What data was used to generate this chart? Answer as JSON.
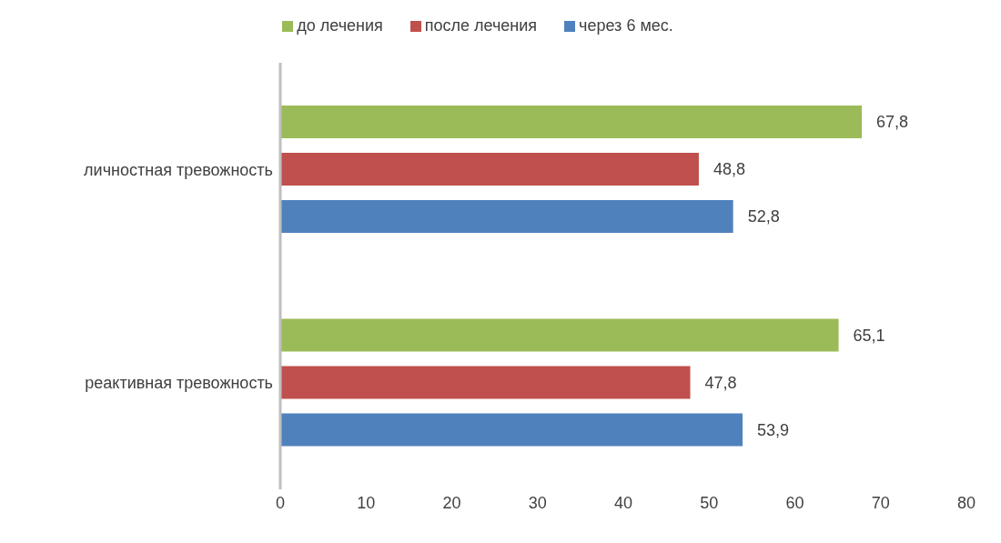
{
  "chart_data": {
    "type": "bar",
    "orientation": "horizontal",
    "categories": [
      "личностная тревожность",
      "реактивная тревожность"
    ],
    "series": [
      {
        "name": "до лечения",
        "color": "#9bbb59",
        "values": [
          67.8,
          65.1
        ],
        "value_labels": [
          "67,8",
          "65,1"
        ]
      },
      {
        "name": "после лечения",
        "color": "#c0504d",
        "values": [
          48.8,
          47.8
        ],
        "value_labels": [
          "48,8",
          "47,8"
        ]
      },
      {
        "name": "через 6 мес.",
        "color": "#4f81bd",
        "values": [
          52.8,
          53.9
        ],
        "value_labels": [
          "52,8",
          "53,9"
        ]
      }
    ],
    "xlim": [
      0,
      80
    ],
    "xticks": [
      0,
      10,
      20,
      30,
      40,
      50,
      60,
      70,
      80
    ],
    "grid": false,
    "legend": "top"
  }
}
